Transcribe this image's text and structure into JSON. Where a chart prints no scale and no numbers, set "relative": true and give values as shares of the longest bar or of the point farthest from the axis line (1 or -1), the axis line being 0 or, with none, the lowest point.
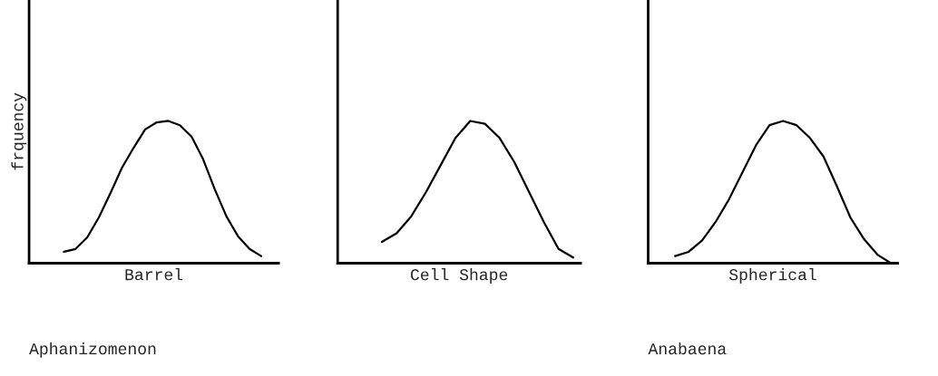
{
  "chart_data": [
    {
      "type": "line",
      "relative": true,
      "tick_labels": false,
      "xlabel": "Barrel",
      "ylabel": "frquency",
      "annotations": [
        "Aphanizomenon"
      ],
      "categories": [
        null,
        null,
        null,
        null,
        null,
        null,
        null,
        null,
        null,
        null,
        null,
        null,
        null,
        null,
        null,
        null,
        null,
        null,
        null,
        null,
        null
      ],
      "series": [
        {
          "color": "#000000",
          "values": [
            null,
            null,
            0.08,
            0.1,
            0.18,
            0.32,
            0.49,
            0.67,
            0.81,
            0.94,
            0.99,
            1,
            0.97,
            0.89,
            0.73,
            0.52,
            0.33,
            0.19,
            0.1,
            0.05,
            null
          ]
        }
      ]
    },
    {
      "type": "line",
      "relative": true,
      "tick_labels": false,
      "xlabel": "Cell Shape",
      "categories": [
        null,
        null,
        null,
        null,
        null,
        null,
        null,
        null,
        null,
        null,
        null,
        null,
        null,
        null,
        null,
        null
      ],
      "series": [
        {
          "color": "#000000",
          "values": [
            null,
            null,
            0.15,
            0.21,
            0.33,
            0.5,
            0.69,
            0.88,
            1,
            0.98,
            0.88,
            0.71,
            0.5,
            0.29,
            0.1,
            0.04
          ]
        }
      ]
    },
    {
      "type": "line",
      "relative": true,
      "tick_labels": false,
      "xlabel": "Spherical",
      "annotations": [
        "Anabaena"
      ],
      "categories": [
        null,
        null,
        null,
        null,
        null,
        null,
        null,
        null,
        null,
        null,
        null,
        null,
        null,
        null,
        null,
        null,
        null,
        null
      ],
      "series": [
        {
          "color": "#000000",
          "values": [
            null,
            0.05,
            0.08,
            0.16,
            0.29,
            0.45,
            0.64,
            0.83,
            0.97,
            1,
            0.97,
            0.88,
            0.75,
            0.54,
            0.32,
            0.17,
            0.06,
            0
          ]
        }
      ]
    }
  ]
}
